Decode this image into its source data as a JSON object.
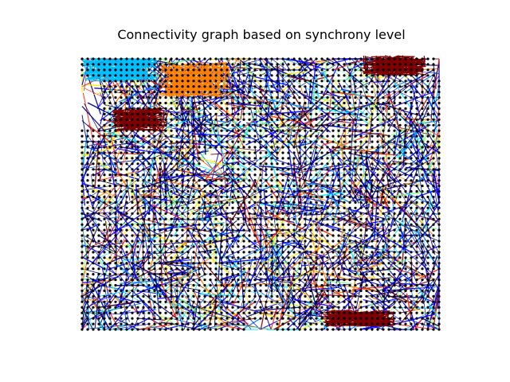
{
  "figure": {
    "title": "Connectivity graph based on synchrony level"
  },
  "chart_data": {
    "type": "graph",
    "title": "Connectivity graph based on synchrony level",
    "layout": "grid",
    "grid": {
      "columns": 65,
      "rows": 50
    },
    "node_color": "#000000",
    "edge_colormap": "jet",
    "colormap_stops": [
      "#00007f",
      "#0000ff",
      "#007fff",
      "#00e5ff",
      "#7cff79",
      "#ffea00",
      "#ff7a00",
      "#ff1e00",
      "#7f0000"
    ],
    "axes_visible": false,
    "dense_clusters": [
      {
        "name": "top-left",
        "color": "#00bfff"
      },
      {
        "name": "top-left-center",
        "color": "#ff7f00"
      },
      {
        "name": "upper-left",
        "color": "#7f0000"
      },
      {
        "name": "top-right",
        "color": "#7f0000"
      },
      {
        "name": "lower-right",
        "color": "#7f0000"
      }
    ]
  }
}
